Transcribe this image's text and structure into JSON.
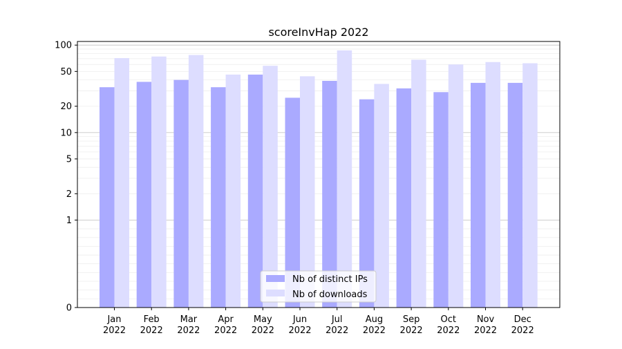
{
  "chart_data": {
    "type": "bar",
    "title": "scoreInvHap 2022",
    "xlabel": "",
    "ylabel": "",
    "yscale": "symlog",
    "ylim": [
      0,
      110
    ],
    "y_ticks": [
      0,
      1,
      2,
      5,
      10,
      20,
      50,
      100
    ],
    "y_tick_labels": [
      "0",
      "1",
      "2",
      "5",
      "10",
      "20",
      "50",
      "100"
    ],
    "categories": [
      "Jan\n2022",
      "Feb\n2022",
      "Mar\n2022",
      "Apr\n2022",
      "May\n2022",
      "Jun\n2022",
      "Jul\n2022",
      "Aug\n2022",
      "Sep\n2022",
      "Oct\n2022",
      "Nov\n2022",
      "Dec\n2022"
    ],
    "series": [
      {
        "name": "Nb of distinct IPs",
        "color": "#aaaaff",
        "values": [
          33,
          38,
          40,
          33,
          46,
          25,
          39,
          24,
          32,
          29,
          37,
          37
        ]
      },
      {
        "name": "Nb of downloads",
        "color": "#ddddff",
        "values": [
          71,
          74,
          77,
          46,
          58,
          44,
          87,
          36,
          68,
          60,
          64,
          62
        ]
      }
    ],
    "legend_position": "bottom-center",
    "grid": true
  }
}
